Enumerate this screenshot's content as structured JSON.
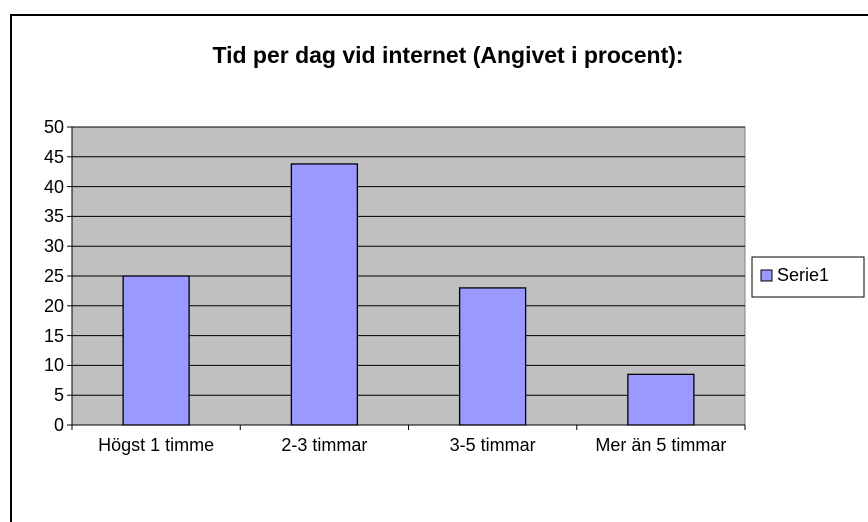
{
  "chart_data": {
    "type": "bar",
    "title": "Tid per dag vid internet (Angivet i procent):",
    "categories": [
      "Högst 1 timme",
      "2-3 timmar",
      "3-5 timmar",
      "Mer än 5 timmar"
    ],
    "series": [
      {
        "name": "Serie1",
        "color": "#9999ff",
        "values": [
          25,
          43.8,
          23,
          8.5
        ]
      }
    ],
    "ylim": [
      0,
      50
    ],
    "yticks": [
      0,
      5,
      10,
      15,
      20,
      25,
      30,
      35,
      40,
      45,
      50
    ],
    "grid": true,
    "legend": "right"
  }
}
